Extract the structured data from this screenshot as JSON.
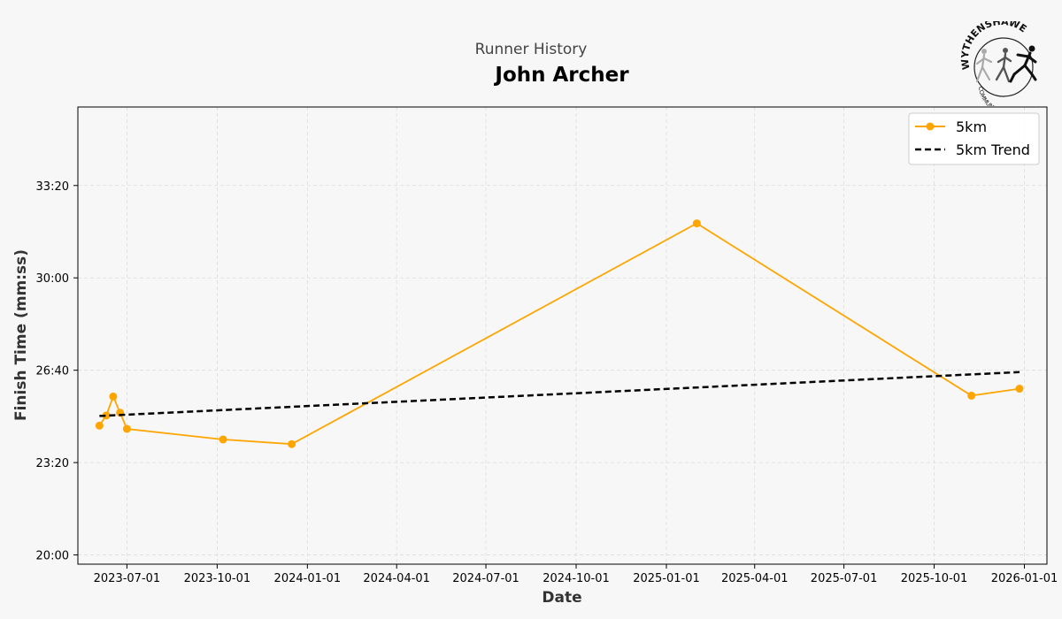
{
  "header": {
    "subtitle": "Runner History",
    "title": "John Archer"
  },
  "logo": {
    "icon": "wythenshawe-community-run-logo",
    "text_top": "WYTHENSHAWE",
    "text_bottom": "COMMUNITY RUN"
  },
  "chart_data": {
    "type": "line",
    "xlabel": "Date",
    "ylabel": "Finish Time (mm:ss)",
    "x_ticks": [
      "2023-07-01",
      "2023-10-01",
      "2024-01-01",
      "2024-04-01",
      "2024-07-01",
      "2024-10-01",
      "2025-01-01",
      "2025-04-01",
      "2025-07-01",
      "2025-10-01",
      "2026-01-01"
    ],
    "y_ticks": [
      "20:00",
      "23:20",
      "26:40",
      "30:00",
      "33:20"
    ],
    "xlim": [
      "2023-05-12",
      "2026-01-24"
    ],
    "ylim_seconds": [
      1180,
      2170
    ],
    "grid": true,
    "legend_position": "top-right",
    "colors": {
      "series": "#FFA500",
      "trend": "#000000"
    },
    "series": [
      {
        "name": "5km",
        "points": [
          {
            "x": "2023-06-03",
            "y": "24:40"
          },
          {
            "x": "2023-06-10",
            "y": "25:02"
          },
          {
            "x": "2023-06-17",
            "y": "25:43"
          },
          {
            "x": "2023-06-24",
            "y": "25:08"
          },
          {
            "x": "2023-07-01",
            "y": "24:33"
          },
          {
            "x": "2023-10-07",
            "y": "24:10"
          },
          {
            "x": "2023-12-16",
            "y": "24:00"
          },
          {
            "x": "2025-02-01",
            "y": "31:58"
          },
          {
            "x": "2025-11-08",
            "y": "25:45"
          },
          {
            "x": "2025-12-27",
            "y": "26:00"
          }
        ]
      },
      {
        "name": "5km Trend",
        "style": "dashed",
        "points": [
          {
            "x": "2023-06-03",
            "y": "25:01"
          },
          {
            "x": "2025-12-27",
            "y": "26:36"
          }
        ]
      }
    ]
  }
}
